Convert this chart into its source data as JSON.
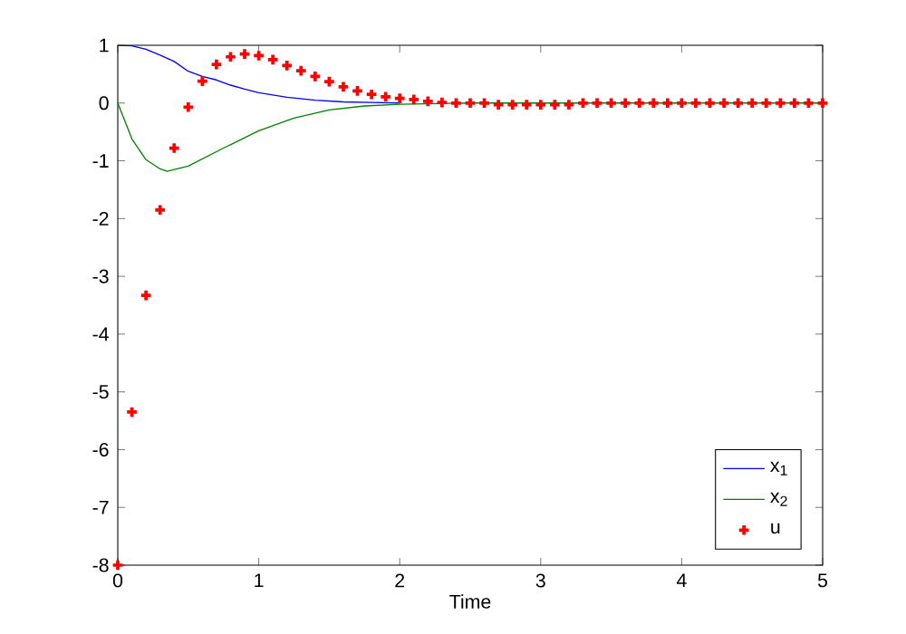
{
  "chart_data": {
    "type": "line",
    "xlabel": "Time",
    "xlim": [
      0,
      5
    ],
    "ylim": [
      -8,
      1
    ],
    "xticks": [
      0,
      1,
      2,
      3,
      4,
      5
    ],
    "yticks": [
      -8,
      -7,
      -6,
      -5,
      -4,
      -3,
      -2,
      -1,
      0,
      1
    ],
    "grid": false,
    "legend": "bottom right",
    "series": [
      {
        "name": "x$_{1}$",
        "color": "#0000ff",
        "x": [
          0,
          0.1,
          0.2,
          0.3,
          0.4,
          0.5,
          0.6,
          0.7,
          0.8,
          0.9,
          1.0,
          1.2,
          1.4,
          1.6,
          1.8,
          2.0
        ],
        "values": [
          1.0,
          0.99,
          0.93,
          0.83,
          0.72,
          0.55,
          0.46,
          0.4,
          0.31,
          0.24,
          0.18,
          0.1,
          0.05,
          0.02,
          0.01,
          0
        ]
      },
      {
        "name": "x$_{2}$",
        "color": "#008000",
        "x": [
          0,
          0.1,
          0.2,
          0.3,
          0.35,
          0.5,
          0.75,
          1.0,
          1.25,
          1.5,
          1.75,
          2.0,
          2.5,
          5.0
        ],
        "values": [
          0,
          -0.62,
          -0.98,
          -1.14,
          -1.18,
          -1.09,
          -0.78,
          -0.48,
          -0.26,
          -0.12,
          -0.05,
          -0.02,
          0,
          0
        ]
      },
      {
        "name": "u",
        "color": "#ff0000",
        "type": "scatter",
        "marker": "cross",
        "x": [
          0,
          0.1,
          0.2,
          0.3,
          0.4,
          0.5,
          0.6,
          0.7,
          0.8,
          0.9,
          1.0,
          1.1,
          1.2,
          1.3,
          1.4,
          1.5,
          1.6,
          1.7,
          1.8,
          1.9,
          2.0,
          2.1,
          2.2,
          2.3,
          2.4,
          2.5,
          2.6,
          2.7,
          2.8,
          2.9,
          3.0,
          3.1,
          3.2,
          3.3,
          3.4,
          3.5,
          3.6,
          3.7,
          3.8,
          3.9,
          4.0,
          4.1,
          4.2,
          4.3,
          4.4,
          4.5,
          4.6,
          4.7,
          4.8,
          4.9,
          5.0
        ],
        "values": [
          -8,
          -5.35,
          -3.33,
          -1.85,
          -0.78,
          -0.07,
          0.38,
          0.67,
          0.8,
          0.85,
          0.82,
          0.75,
          0.65,
          0.56,
          0.46,
          0.37,
          0.28,
          0.21,
          0.15,
          0.11,
          0.08,
          0.06,
          0.03,
          0.01,
          0,
          0,
          0,
          -0.03,
          -0.03,
          -0.03,
          -0.03,
          -0.03,
          -0.03,
          0,
          0,
          0,
          0,
          0,
          0,
          0,
          0,
          0,
          0,
          0,
          0,
          0,
          0,
          0,
          0,
          0,
          0
        ]
      }
    ]
  }
}
